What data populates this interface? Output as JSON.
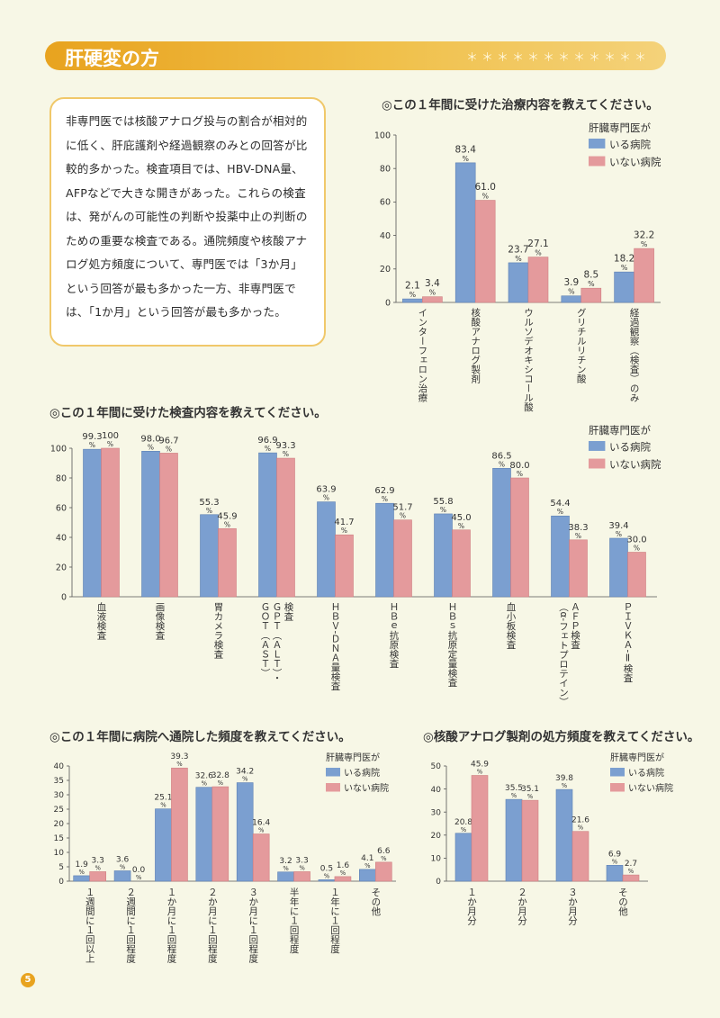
{
  "page": {
    "title": "肝硬変の方",
    "stars": "＊＊＊＊＊＊＊＊＊＊＊＊",
    "page_number": "5",
    "summary": "非専門医では核酸アナログ投与の割合が相対的に低く、肝庇護剤や経過観察のみとの回答が比較的多かった。検査項目では、HBV-DNA量、AFPなどで大きな開きがあった。これらの検査は、発がんの可能性の判断や投薬中止の判断のための重要な検査である。通院頻度や核酸アナログ処方頻度について、専門医では「3か月」という回答が最も多かった一方、非専門医では、「1か月」という回答が最も多かった。"
  },
  "colors": {
    "with_specialist": "#7b9fd0",
    "without_specialist": "#e49a9c",
    "accent": "#e8a31f"
  },
  "legend": {
    "title": "肝臓専門医が",
    "with": "いる病院",
    "without": "いない病院"
  },
  "chart_data": [
    {
      "id": "treatment",
      "type": "bar",
      "title": "◎この１年間に受けた治療内容を教えてください。",
      "categories": [
        "インターフェロン治療",
        "核酸アナログ製剤",
        "ウルソデオキシコール酸",
        "グリチルリチン酸",
        "経過観察（検査）のみ"
      ],
      "series": [
        {
          "name": "いる病院",
          "values": [
            2.1,
            83.4,
            23.7,
            3.9,
            18.2
          ]
        },
        {
          "name": "いない病院",
          "values": [
            3.4,
            61.0,
            27.1,
            8.5,
            32.2
          ]
        }
      ],
      "value_labels": [
        [
          "2.1",
          "83.4",
          "23.7",
          "3.9",
          "18.2"
        ],
        [
          "3.4",
          "61.0",
          "27.1",
          "8.5",
          "32.2"
        ]
      ],
      "unit": "%",
      "ylim": [
        0,
        100
      ],
      "yticks": [
        "0",
        "20",
        "40",
        "60",
        "80",
        "100"
      ],
      "grid": false,
      "legend_position": "top-right"
    },
    {
      "id": "tests",
      "type": "bar",
      "title": "◎この１年間に受けた検査内容を教えてください。",
      "categories": [
        "血液検査",
        "画像検査",
        "胃カメラ検査",
        "GOT(AST)・GPT(ALT)検査",
        "HBV-DNA量検査",
        "HBe抗原検査",
        "HBs抗原定量検査",
        "血小板検査",
        "AFP検査(α-フェトプロテイン)",
        "PIVKA-II検査"
      ],
      "category_lines": [
        [
          "血液検査"
        ],
        [
          "画像検査"
        ],
        [
          "胃カメラ検査"
        ],
        [
          "ＧＯＴ（ＡＳＴ）",
          "ＧＰＴ（ＡＬＴ）・",
          "検査"
        ],
        [
          "ＨＢＶ-ＤＮＡ量検査"
        ],
        [
          "ＨＢｅ抗原検査"
        ],
        [
          "ＨＢｓ抗原定量検査"
        ],
        [
          "血小板検査"
        ],
        [
          "（α-フェトプロテイン）",
          "ＡＦＰ検査"
        ],
        [
          "ＰＩＶＫＡ-Ⅱ検査"
        ]
      ],
      "series": [
        {
          "name": "いる病院",
          "values": [
            99.3,
            98.0,
            55.3,
            96.9,
            63.9,
            62.9,
            55.8,
            86.5,
            54.4,
            39.4
          ]
        },
        {
          "name": "いない病院",
          "values": [
            100,
            96.7,
            45.9,
            93.3,
            41.7,
            51.7,
            45.0,
            80.0,
            38.3,
            30.0
          ]
        }
      ],
      "value_labels": [
        [
          "99.3",
          "98.0",
          "55.3",
          "96.9",
          "63.9",
          "62.9",
          "55.8",
          "86.5",
          "54.4",
          "39.4"
        ],
        [
          "100",
          "96.7",
          "45.9",
          "93.3",
          "41.7",
          "51.7",
          "45.0",
          "80.0",
          "38.3",
          "30.0"
        ]
      ],
      "unit": "%",
      "ylim": [
        0,
        100
      ],
      "yticks": [
        "0",
        "20",
        "40",
        "60",
        "80",
        "100"
      ],
      "grid": false,
      "legend_position": "top-right"
    },
    {
      "id": "visits",
      "type": "bar",
      "title": "◎この１年間に病院へ通院した頻度を教えてください。",
      "categories": [
        "1週間に1回以上",
        "2週間に1回程度",
        "1か月に1回程度",
        "2か月に1回程度",
        "3か月に1回程度",
        "半年に1回程度",
        "1年に1回程度",
        "その他"
      ],
      "category_lines": [
        [
          "１週間に１回以上"
        ],
        [
          "２週間に１回程度"
        ],
        [
          "１か月に１回程度"
        ],
        [
          "２か月に１回程度"
        ],
        [
          "３か月に１回程度"
        ],
        [
          "半年に１回程度"
        ],
        [
          "１年に１回程度"
        ],
        [
          "その他"
        ]
      ],
      "series": [
        {
          "name": "いる病院",
          "values": [
            1.9,
            3.6,
            25.1,
            32.6,
            34.2,
            3.2,
            0.5,
            4.1
          ]
        },
        {
          "name": "いない病院",
          "values": [
            3.3,
            0.0,
            39.3,
            32.8,
            16.4,
            3.3,
            1.6,
            6.6
          ]
        }
      ],
      "value_labels": [
        [
          "1.9",
          "3.6",
          "25.1",
          "32.6",
          "34.2",
          "3.2",
          "0.5",
          "4.1"
        ],
        [
          "3.3",
          "0.0",
          "39.3",
          "32.8",
          "16.4",
          "3.3",
          "1.6",
          "6.6"
        ]
      ],
      "unit": "%",
      "ylim": [
        0,
        40
      ],
      "yticks": [
        "0",
        "5",
        "10",
        "15",
        "20",
        "25",
        "30",
        "35",
        "40"
      ],
      "grid": false,
      "legend_position": "top-right"
    },
    {
      "id": "prescription",
      "type": "bar",
      "title": "◎核酸アナログ製剤の処方頻度を教えてください。",
      "categories": [
        "1か月分",
        "2か月分",
        "3か月分",
        "その他"
      ],
      "category_lines": [
        [
          "１か月分"
        ],
        [
          "２か月分"
        ],
        [
          "３か月分"
        ],
        [
          "その他"
        ]
      ],
      "series": [
        {
          "name": "いる病院",
          "values": [
            20.8,
            35.5,
            39.8,
            6.9
          ]
        },
        {
          "name": "いない病院",
          "values": [
            45.9,
            35.1,
            21.6,
            2.7
          ]
        }
      ],
      "value_labels": [
        [
          "20.8",
          "35.5",
          "39.8",
          "6.9"
        ],
        [
          "45.9",
          "35.1",
          "21.6",
          "2.7"
        ]
      ],
      "unit": "%",
      "ylim": [
        0,
        50
      ],
      "yticks": [
        "0",
        "10",
        "20",
        "30",
        "40",
        "50"
      ],
      "grid": false,
      "legend_position": "top-right"
    }
  ]
}
